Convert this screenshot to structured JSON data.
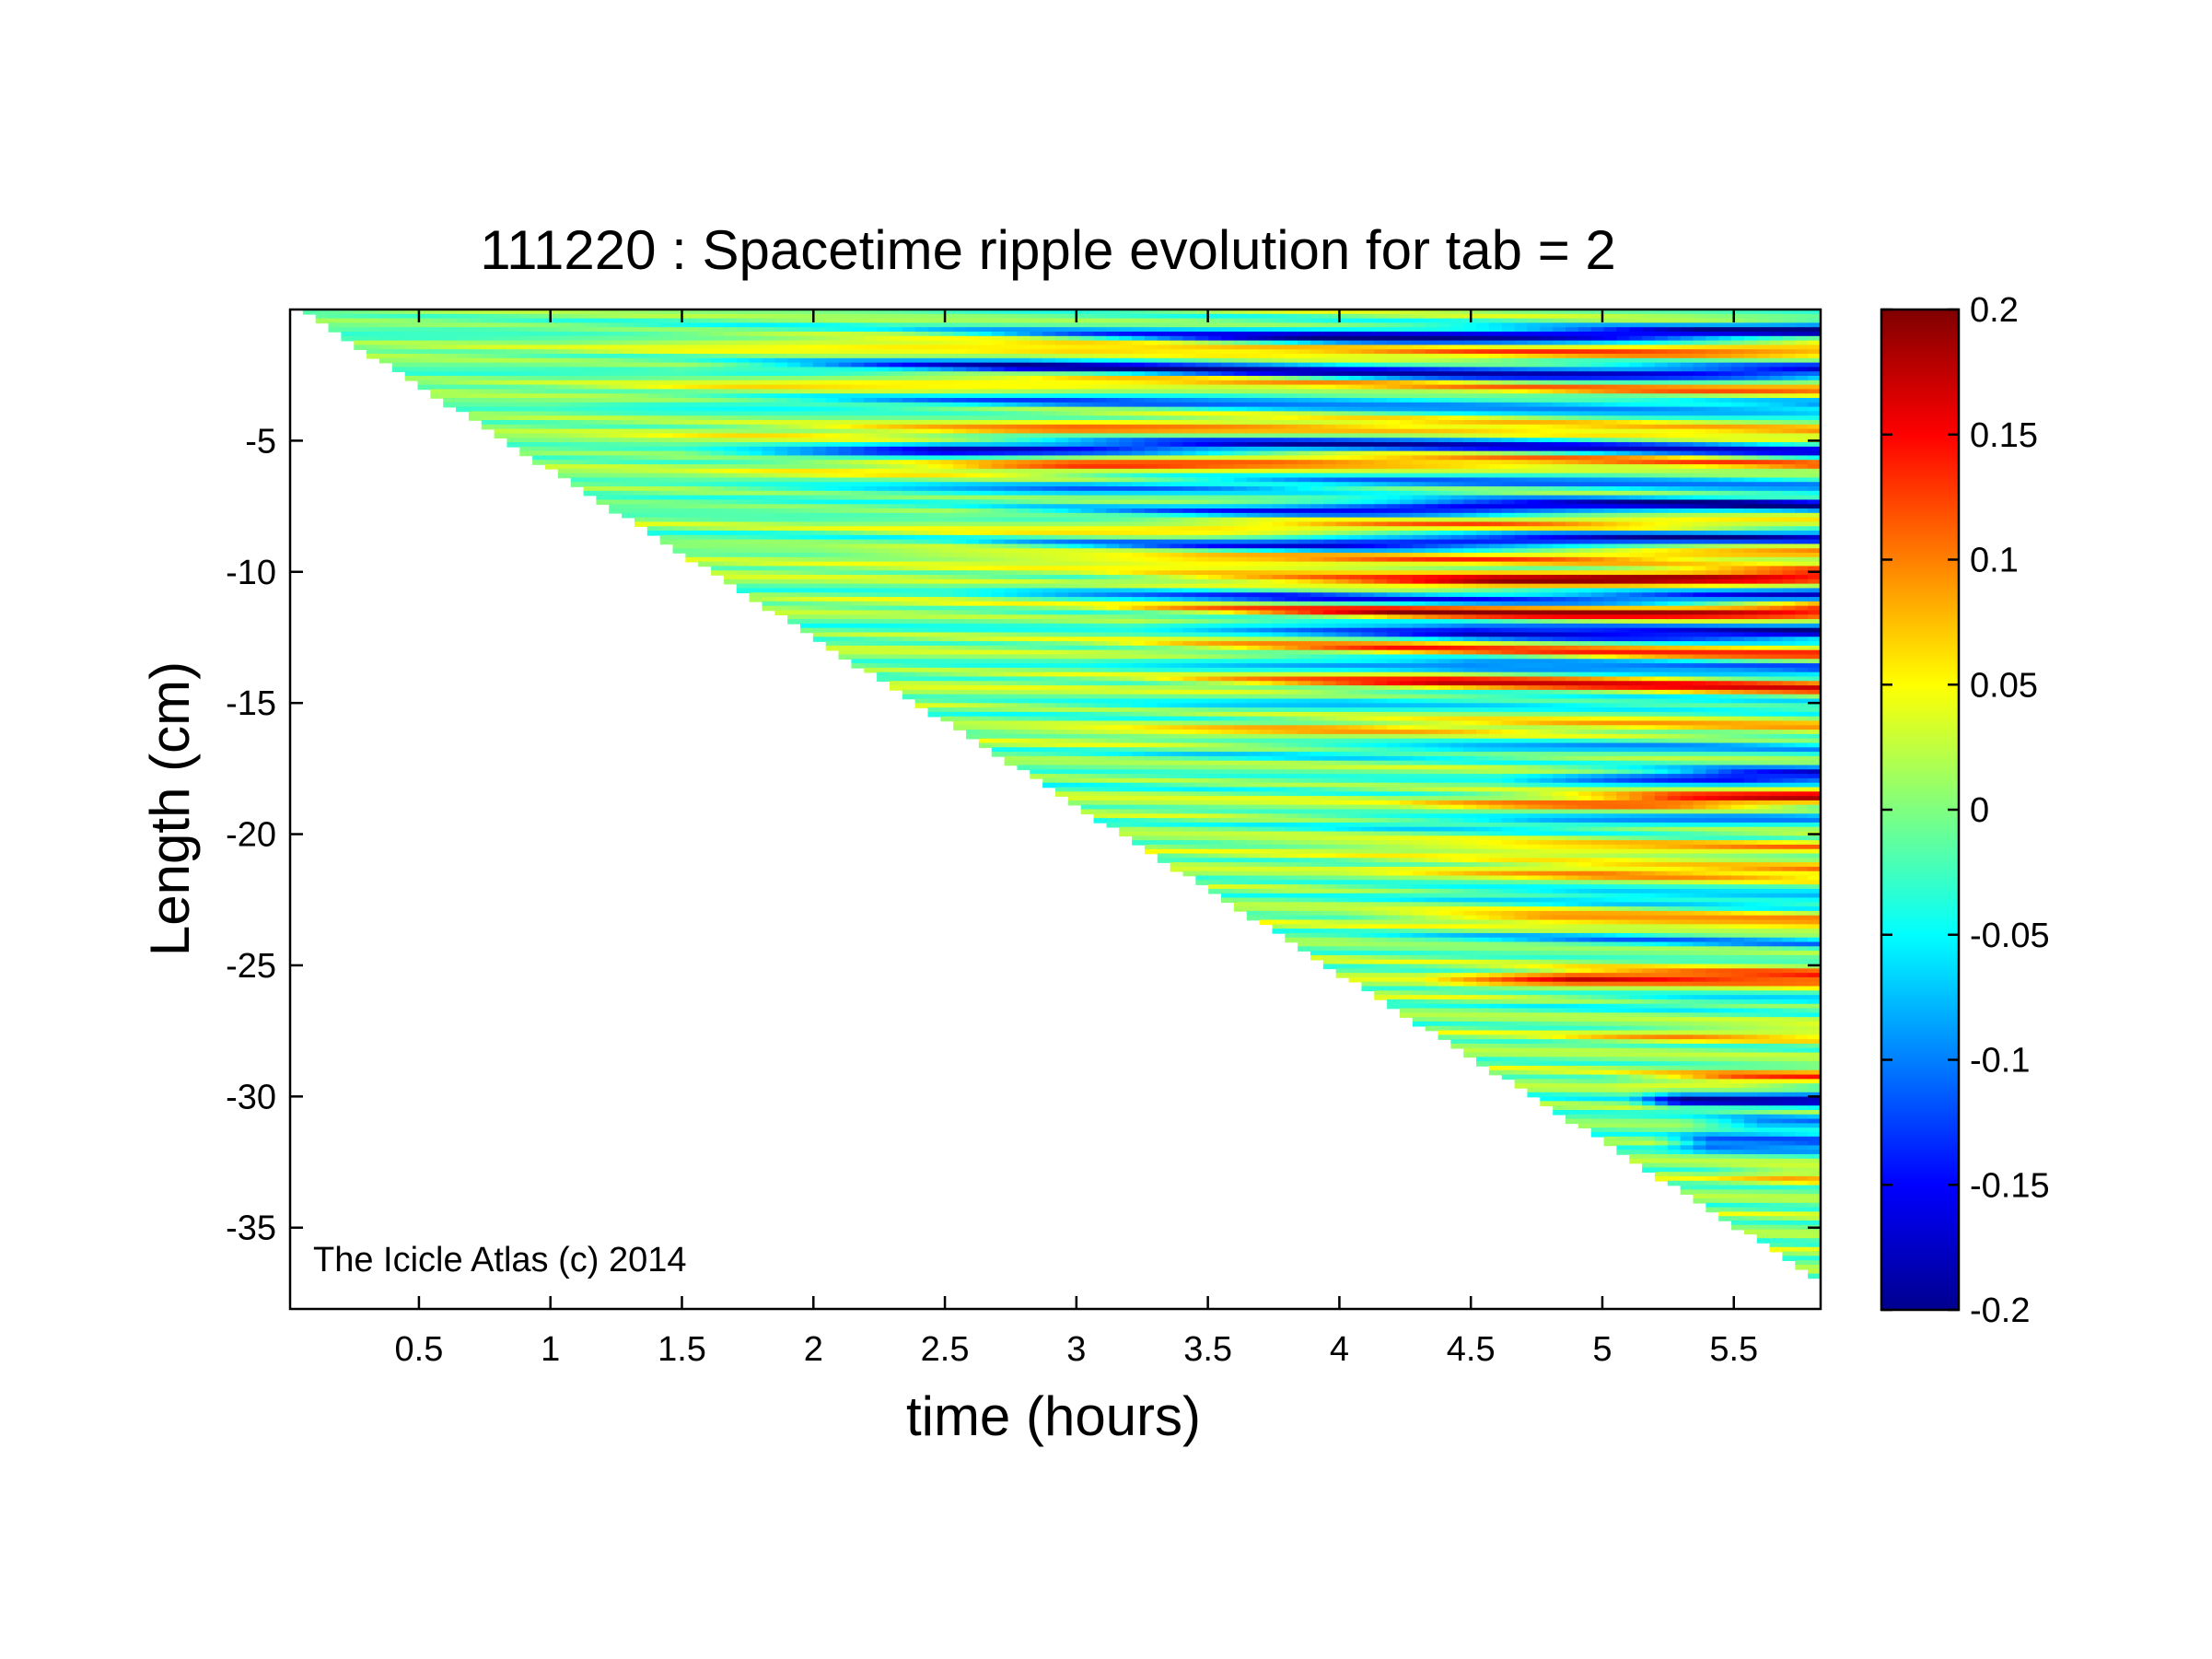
{
  "chart_data": {
    "type": "heatmap",
    "title": "111220 : Spacetime ripple evolution for tab = 2",
    "xlabel": "time (hours)",
    "ylabel": "Length (cm)",
    "annotation": "The Icicle Atlas (c) 2014",
    "colormap": "jet",
    "grid": false,
    "xlim": [
      0.01,
      5.83
    ],
    "ylim": [
      -38.1,
      0
    ],
    "xticks": [
      0.5,
      1,
      1.5,
      2,
      2.5,
      3,
      3.5,
      4,
      4.5,
      5,
      5.5
    ],
    "xtick_labels": [
      "0.5",
      "1",
      "1.5",
      "2",
      "2.5",
      "3",
      "3.5",
      "4",
      "4.5",
      "5",
      "5.5"
    ],
    "yticks": [
      -5,
      -10,
      -15,
      -20,
      -25,
      -30,
      -35
    ],
    "ytick_labels": [
      "-5",
      "-10",
      "-15",
      "-20",
      "-25",
      "-30",
      "-35"
    ],
    "colorbar": {
      "clim": [
        -0.2,
        0.2
      ],
      "ticks": [
        0.2,
        0.15,
        0.1,
        0.05,
        0,
        -0.05,
        -0.1,
        -0.15,
        -0.2
      ],
      "tick_labels": [
        "0.2",
        "0.15",
        "0.1",
        "0.05",
        "0",
        "-0.05",
        "-0.1",
        "-0.15",
        "-0.2"
      ]
    },
    "growth_front": {
      "description": "data exists only where length >= -6.4 * time + 0.3",
      "slope_cm_per_hour": -6.4
    },
    "bands": [
      {
        "y": -0.9,
        "value": -0.19,
        "t_start": 2.3,
        "t_full": 4.0
      },
      {
        "y": -1.5,
        "value": 0.1,
        "t_start": 1.0,
        "t_full": 3.0
      },
      {
        "y": -2.3,
        "value": -0.17,
        "t_start": 1.5,
        "t_full": 2.8
      },
      {
        "y": -2.9,
        "value": 0.09,
        "t_start": 1.0,
        "t_full": 3.0
      },
      {
        "y": -3.6,
        "value": -0.1,
        "t_start": 1.0,
        "t_full": 3.0
      },
      {
        "y": -4.6,
        "value": 0.09,
        "t_start": 1.0,
        "t_full": 3.0
      },
      {
        "y": -5.3,
        "value": -0.16,
        "t_start": 1.5,
        "t_full": 2.5
      },
      {
        "y": -5.9,
        "value": 0.11,
        "t_start": 1.5,
        "t_full": 3.0
      },
      {
        "y": -6.7,
        "value": -0.09,
        "t_start": 1.5,
        "t_full": 3.0
      },
      {
        "y": -7.6,
        "value": -0.18,
        "t_start": 2.5,
        "t_full": 4.5
      },
      {
        "y": -8.2,
        "value": 0.08,
        "t_start": 2.0,
        "t_full": 3.5
      },
      {
        "y": -8.8,
        "value": -0.16,
        "t_start": 2.5,
        "t_full": 4.0
      },
      {
        "y": -9.4,
        "value": 0.09,
        "t_start": 2.0,
        "t_full": 3.5
      },
      {
        "y": -10.2,
        "value": 0.18,
        "t_start": 3.0,
        "t_full": 4.6
      },
      {
        "y": -10.9,
        "value": -0.15,
        "t_start": 2.5,
        "t_full": 3.8
      },
      {
        "y": -11.4,
        "value": 0.18,
        "t_start": 3.0,
        "t_full": 4.2
      },
      {
        "y": -12.2,
        "value": -0.19,
        "t_start": 3.2,
        "t_full": 4.5
      },
      {
        "y": -13.0,
        "value": 0.12,
        "t_start": 3.0,
        "t_full": 4.2
      },
      {
        "y": -13.6,
        "value": -0.14,
        "t_start": 3.0,
        "t_full": 4.5
      },
      {
        "y": -14.3,
        "value": 0.15,
        "t_start": 3.2,
        "t_full": 4.4
      },
      {
        "y": -15.1,
        "value": -0.06,
        "t_start": 2.5,
        "t_full": 4.0
      },
      {
        "y": -16.0,
        "value": 0.07,
        "t_start": 2.5,
        "t_full": 4.0
      },
      {
        "y": -16.8,
        "value": -0.07,
        "t_start": 3.0,
        "t_full": 4.5
      },
      {
        "y": -17.9,
        "value": -0.18,
        "t_start": 4.6,
        "t_full": 5.5
      },
      {
        "y": -18.7,
        "value": 0.16,
        "t_start": 4.2,
        "t_full": 5.3
      },
      {
        "y": -19.4,
        "value": -0.08,
        "t_start": 3.5,
        "t_full": 4.8
      },
      {
        "y": -20.4,
        "value": 0.07,
        "t_start": 3.5,
        "t_full": 4.8
      },
      {
        "y": -21.3,
        "value": 0.1,
        "t_start": 4.0,
        "t_full": 5.0
      },
      {
        "y": -22.3,
        "value": -0.08,
        "t_start": 3.8,
        "t_full": 5.0
      },
      {
        "y": -23.3,
        "value": 0.1,
        "t_start": 4.0,
        "t_full": 4.8
      },
      {
        "y": -24.1,
        "value": -0.07,
        "t_start": 4.0,
        "t_full": 5.0
      },
      {
        "y": -25.6,
        "value": 0.16,
        "t_start": 4.3,
        "t_full": 4.9
      },
      {
        "y": -26.5,
        "value": -0.05,
        "t_start": 4.5,
        "t_full": 5.3
      },
      {
        "y": -27.7,
        "value": 0.06,
        "t_start": 4.7,
        "t_full": 5.3
      },
      {
        "y": -29.2,
        "value": 0.1,
        "t_start": 5.0,
        "t_full": 5.5
      },
      {
        "y": -30.0,
        "value": -0.17,
        "t_start": 5.1,
        "t_full": 5.3
      },
      {
        "y": -30.9,
        "value": -0.1,
        "t_start": 5.3,
        "t_full": 5.6
      },
      {
        "y": -31.7,
        "value": -0.14,
        "t_start": 5.2,
        "t_full": 5.4
      },
      {
        "y": -33.0,
        "value": 0.06,
        "t_start": 5.4,
        "t_full": 5.7
      }
    ]
  }
}
